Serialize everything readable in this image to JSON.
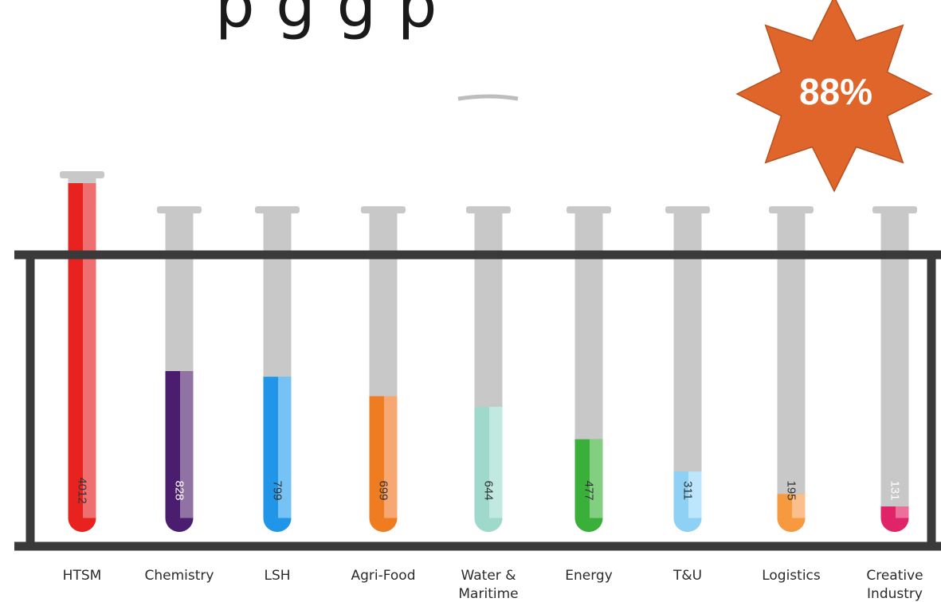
{
  "title_fragment": "p  g  g  p",
  "badge": {
    "text": "88%",
    "color": "#e0652b"
  },
  "chart_data": {
    "type": "bar",
    "categories": [
      "HTSM",
      "Chemistry",
      "LSH",
      "Agri-Food",
      "Water & Maritime",
      "Energy",
      "T&U",
      "Logistics",
      "Creative Industry"
    ],
    "category_lines": [
      [
        "HTSM"
      ],
      [
        "Chemistry"
      ],
      [
        "LSH"
      ],
      [
        "Agri-Food"
      ],
      [
        "Water &",
        "Maritime"
      ],
      [
        "Energy"
      ],
      [
        "T&U"
      ],
      [
        "Logistics"
      ],
      [
        "Creative",
        "Industry"
      ]
    ],
    "values": [
      4012,
      828,
      799,
      699,
      644,
      477,
      311,
      195,
      131
    ],
    "value_labels": [
      "4012",
      "828",
      "799",
      "699",
      "644",
      "477",
      "311",
      "195",
      "131"
    ],
    "colors": [
      "#e8221f",
      "#4a1d6e",
      "#2196e8",
      "#f07c22",
      "#9ed9cc",
      "#3ab03a",
      "#8fd0f5",
      "#f7993f",
      "#e0246a"
    ],
    "highlight_colors": [
      "#f07d80",
      "#9c82ad",
      "#85caf7",
      "#f8b080",
      "#c7ebe3",
      "#8fd58f",
      "#c6e9fb",
      "#fbc69a",
      "#ef7ea5"
    ]
  }
}
